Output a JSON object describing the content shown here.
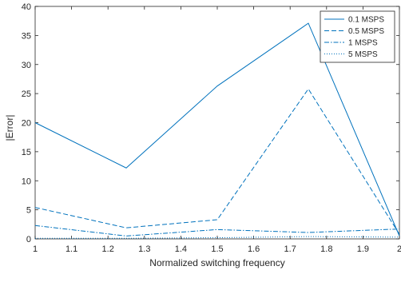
{
  "chart_data": {
    "type": "line",
    "title": "",
    "xlabel": "Normalized switching frequency",
    "ylabel": "|Error|",
    "xlim": [
      1,
      2
    ],
    "ylim": [
      0,
      40
    ],
    "xticks": [
      1,
      1.1,
      1.2,
      1.3,
      1.4,
      1.5,
      1.6,
      1.7,
      1.8,
      1.9,
      2
    ],
    "yticks": [
      0,
      5,
      10,
      15,
      20,
      25,
      30,
      35,
      40
    ],
    "grid": false,
    "legend_position": "top-right",
    "x": [
      1,
      1.25,
      1.5,
      1.75,
      2
    ],
    "series": [
      {
        "name": "0.1 MSPS",
        "style": "solid",
        "values": [
          20.0,
          12.2,
          26.3,
          37.1,
          0.5
        ]
      },
      {
        "name": "0.5 MSPS",
        "style": "dashed",
        "values": [
          5.4,
          1.9,
          3.3,
          25.8,
          0.8
        ]
      },
      {
        "name": "1 MSPS",
        "style": "dashdot",
        "values": [
          2.3,
          0.5,
          1.6,
          1.1,
          1.7
        ]
      },
      {
        "name": "5 MSPS",
        "style": "dotted",
        "values": [
          0.1,
          0.1,
          0.2,
          0.4,
          0.3
        ]
      }
    ],
    "colors": {
      "line": "#0072bd",
      "axis": "#262626"
    }
  }
}
